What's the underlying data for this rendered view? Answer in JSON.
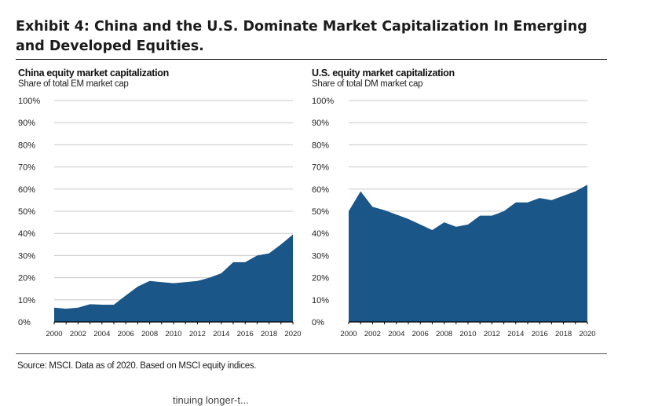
{
  "exhibit_title": "Exhibit 4: China and the U.S. Dominate Market Capitalization In Emerging and Developed Equities.",
  "source": "Source: MSCI. Data as of 2020. Based on MSCI equity indices.",
  "cutoff_text": "tinuing longer-t...",
  "colors": {
    "fill": "#1a5688",
    "grid": "#c8c8c8",
    "axis": "#000000"
  },
  "chart_data": [
    {
      "type": "area",
      "title": "China equity market capitalization",
      "subtitle": "Share of total EM market cap",
      "x": [
        2000,
        2001,
        2002,
        2003,
        2004,
        2005,
        2006,
        2007,
        2008,
        2009,
        2010,
        2011,
        2012,
        2013,
        2014,
        2015,
        2016,
        2017,
        2018,
        2019,
        2020
      ],
      "y_tick_labels": [
        "0%",
        "10%",
        "20%",
        "30%",
        "40%",
        "50%",
        "60%",
        "70%",
        "80%",
        "90%",
        "100%"
      ],
      "x_tick_labels": [
        "2000",
        "2002",
        "2004",
        "2006",
        "2008",
        "2010",
        "2012",
        "2014",
        "2016",
        "2018",
        "2020"
      ],
      "series": [
        {
          "values": [
            6.5,
            6,
            6.5,
            8,
            7.8,
            7.8,
            12,
            16,
            18.5,
            18,
            17.5,
            18,
            18.5,
            20,
            22,
            27,
            27,
            30,
            31,
            35,
            39.5
          ]
        }
      ],
      "ylim": [
        0,
        100
      ],
      "grid": true
    },
    {
      "type": "area",
      "title": "U.S. equity market capitalization",
      "subtitle": "Share of total DM market cap",
      "x": [
        2000,
        2001,
        2002,
        2003,
        2004,
        2005,
        2006,
        2007,
        2008,
        2009,
        2010,
        2011,
        2012,
        2013,
        2014,
        2015,
        2016,
        2017,
        2018,
        2019,
        2020
      ],
      "y_tick_labels": [
        "0%",
        "10%",
        "20%",
        "30%",
        "40%",
        "50%",
        "60%",
        "70%",
        "80%",
        "90%",
        "100%"
      ],
      "x_tick_labels": [
        "2000",
        "2002",
        "2004",
        "2006",
        "2008",
        "2010",
        "2012",
        "2014",
        "2016",
        "2018",
        "2020"
      ],
      "series": [
        {
          "values": [
            50,
            59,
            52,
            50.5,
            48.5,
            46.5,
            44,
            41.5,
            45,
            43,
            44,
            48,
            48,
            50,
            54,
            54,
            56,
            55,
            57,
            59,
            62
          ]
        }
      ],
      "ylim": [
        0,
        100
      ],
      "grid": true
    }
  ]
}
